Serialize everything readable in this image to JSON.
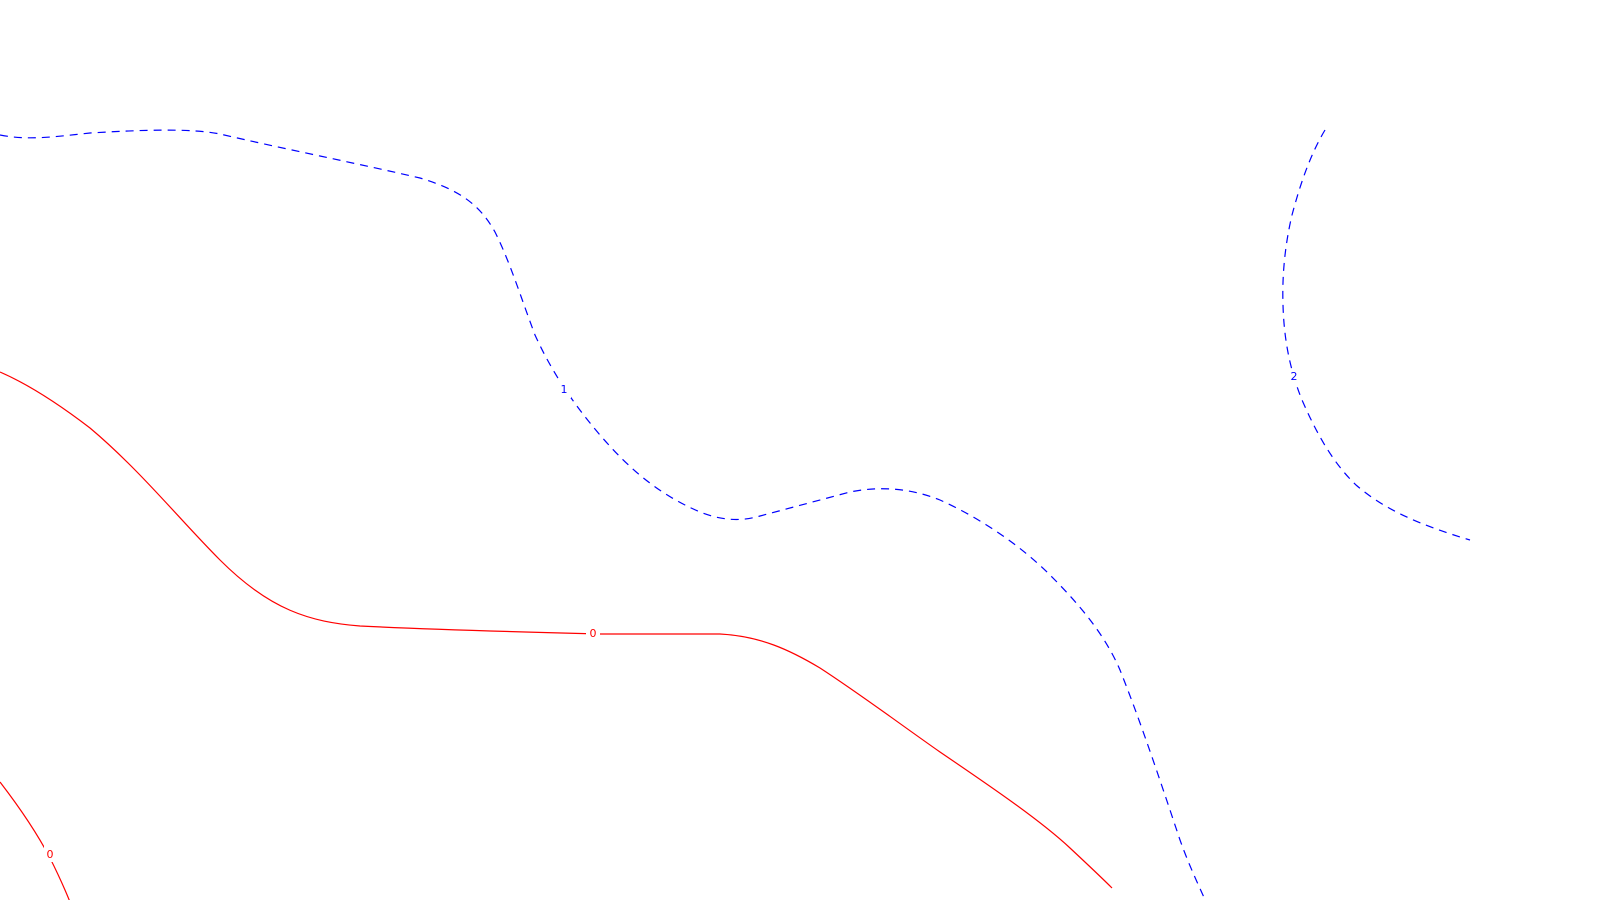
{
  "colors": {
    "background": "#ffffff",
    "level_0": "#ff0000",
    "level_1": "#0000ff",
    "level_2": "#0000ff"
  },
  "contours": [
    {
      "id": "contour-0-main",
      "level": "0",
      "style": "solid",
      "color": "#ff0000",
      "label": "0"
    },
    {
      "id": "contour-0-corner",
      "level": "0",
      "style": "solid",
      "color": "#ff0000",
      "label": "0"
    },
    {
      "id": "contour-1",
      "level": "1",
      "style": "dashed",
      "color": "#0000ff",
      "label": "1"
    },
    {
      "id": "contour-2",
      "level": "2",
      "style": "dashed",
      "color": "#0000ff",
      "label": "2"
    }
  ]
}
